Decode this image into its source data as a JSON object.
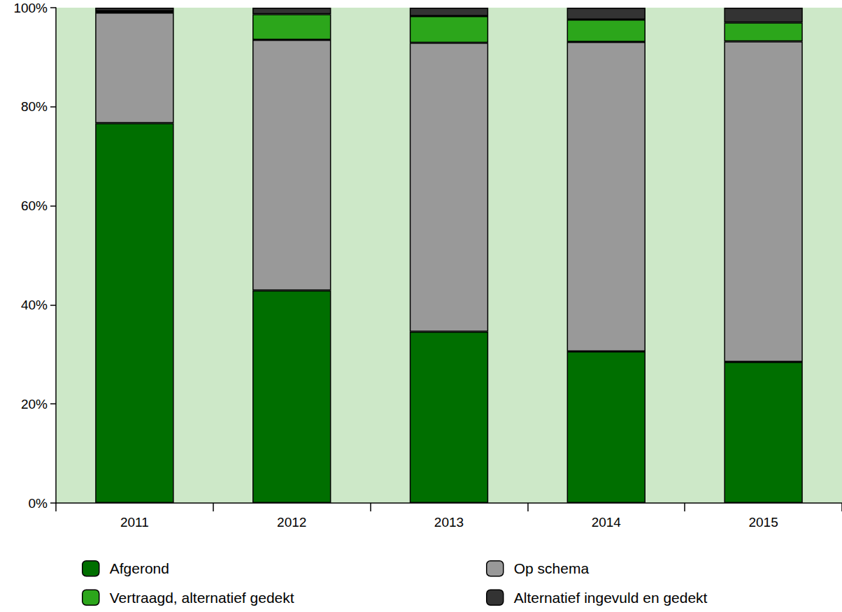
{
  "chart_data": {
    "type": "bar",
    "stacked": true,
    "grid": false,
    "categories": [
      "2011",
      "2012",
      "2013",
      "2014",
      "2015"
    ],
    "series": [
      {
        "name": "Afgerond",
        "color": "#006f00",
        "values": [
          76.7,
          42.9,
          34.6,
          30.6,
          28.5
        ]
      },
      {
        "name": "Op schema",
        "color": "#999999",
        "values": [
          22.3,
          50.6,
          58.3,
          62.5,
          64.7
        ]
      },
      {
        "name": "Vertraagd, alternatief gedekt",
        "color": "#2ca61b",
        "values": [
          0.3,
          5.2,
          5.4,
          4.5,
          3.8
        ]
      },
      {
        "name": "Alternatief ingevuld en gedekt",
        "color": "#333333",
        "values": [
          0.7,
          1.3,
          1.7,
          2.4,
          3.0
        ]
      }
    ],
    "ylim": [
      0,
      100
    ],
    "yticks": [
      {
        "value": 0,
        "label": "0%"
      },
      {
        "value": 20,
        "label": "20%"
      },
      {
        "value": 40,
        "label": "40%"
      },
      {
        "value": 60,
        "label": "60%"
      },
      {
        "value": 80,
        "label": "80%"
      },
      {
        "value": 100,
        "label": "100%"
      }
    ],
    "legend": "bottom"
  }
}
